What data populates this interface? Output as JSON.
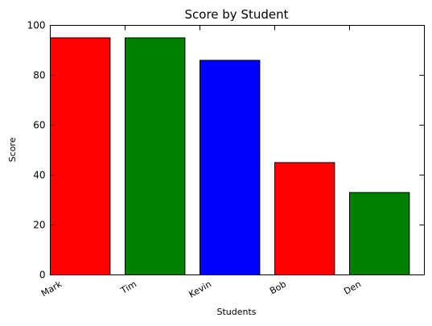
{
  "chart_data": {
    "type": "bar",
    "title": "Score by Student",
    "xlabel": "Students",
    "ylabel": "Score",
    "categories": [
      "Mark",
      "Tim",
      "Kevin",
      "Bob",
      "Den"
    ],
    "values": [
      95,
      95,
      86,
      45,
      33
    ],
    "bar_colors": [
      "#ff0000",
      "#008000",
      "#0000ff",
      "#ff0000",
      "#008000"
    ],
    "ylim": [
      0,
      100
    ],
    "yticks": [
      0,
      20,
      40,
      60,
      80,
      100
    ],
    "grid": false
  }
}
